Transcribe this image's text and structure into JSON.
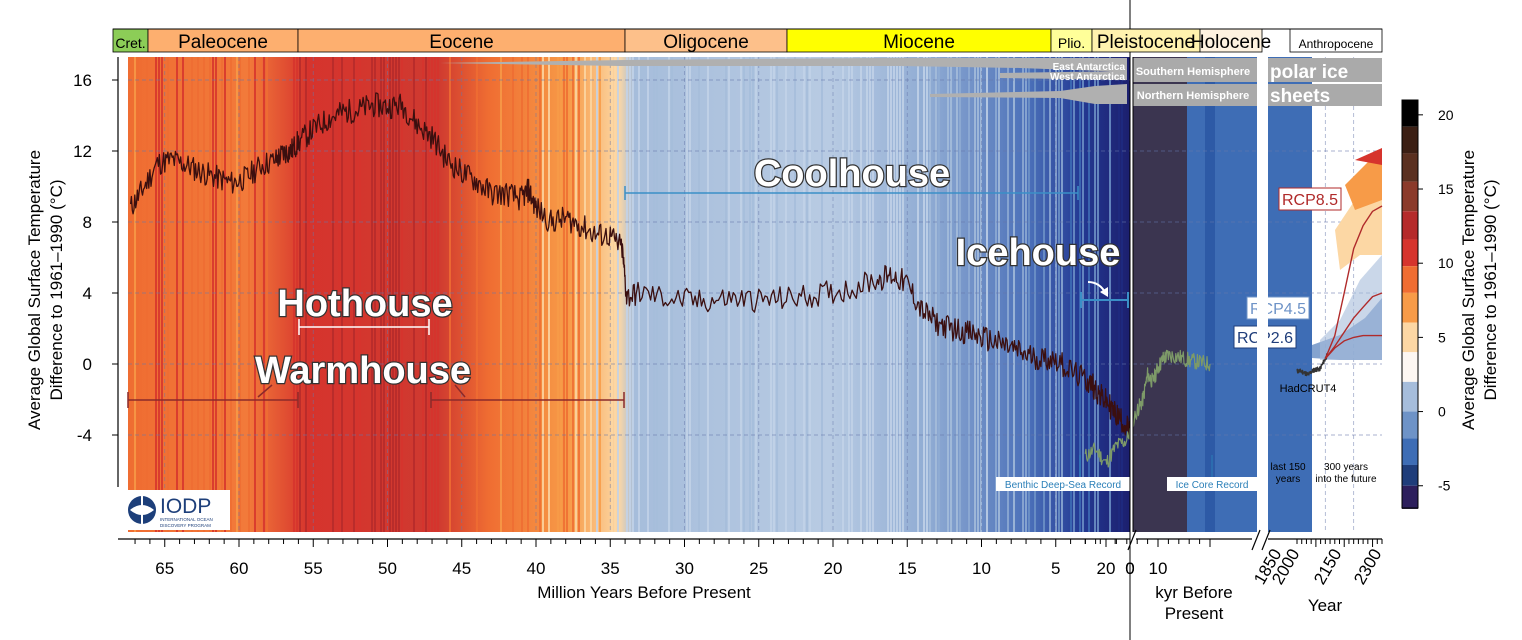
{
  "chart_data": {
    "type": "line",
    "title": "",
    "ylabel_left": [
      "Average Global Surface Temperature",
      "Difference to 1961–1990 (°C)"
    ],
    "ylabel_right": [
      "Average Global Surface Temperature",
      "Difference to 1961–1990 (°C)"
    ],
    "ylim": [
      -7,
      17
    ],
    "yticks": [
      16,
      12,
      8,
      4,
      0,
      -4
    ],
    "panels": [
      {
        "name": "myr",
        "xlabel": "Million Years Before Present",
        "xlim": [
          67.5,
          0
        ],
        "xticks": [
          65,
          60,
          55,
          50,
          45,
          40,
          35,
          30,
          25,
          20,
          15,
          10,
          5,
          0
        ]
      },
      {
        "name": "kyr",
        "xlabel": [
          "kyr Before",
          "Present"
        ],
        "xlim": [
          25,
          0
        ],
        "xticks": [
          20,
          10
        ]
      },
      {
        "name": "year",
        "xlabel": "Year",
        "xticks": [
          "1850",
          "2000",
          "2150",
          "2300"
        ]
      }
    ],
    "epochs": [
      {
        "label": "Cret.",
        "start": 67.5,
        "end": 66,
        "color": "#8ccd57"
      },
      {
        "label": "Paleocene",
        "start": 66,
        "end": 56,
        "color": "#fdaf6f"
      },
      {
        "label": "Eocene",
        "start": 56,
        "end": 33.9,
        "color": "#fdaf6f"
      },
      {
        "label": "Oligocene",
        "start": 33.9,
        "end": 23,
        "color": "#fdc08a"
      },
      {
        "label": "Miocene",
        "start": 23,
        "end": 5.3,
        "color": "#ffff00"
      },
      {
        "label": "Plio.",
        "start": 5.3,
        "end": 2.6,
        "color": "#ffff99"
      },
      {
        "label": "Pleistocene",
        "panel": "kyr-start",
        "color": "#fff2ae"
      },
      {
        "label": "Holocene",
        "panel": "kyr-end",
        "color": "#fef2e0"
      },
      {
        "label": "Anthropocene",
        "panel": "year",
        "color": "#ffffff"
      }
    ],
    "regimes": [
      {
        "label": "Hothouse",
        "from": 56,
        "to": 47
      },
      {
        "label": "Warmhouse",
        "ranges": [
          [
            67,
            56
          ],
          [
            47,
            34
          ]
        ]
      },
      {
        "label": "Coolhouse",
        "from": 34,
        "to": 3.3
      },
      {
        "label": "Icehouse",
        "from": 3.3,
        "to": 0
      }
    ],
    "series": [
      {
        "name": "Benthic Deep-Sea Record",
        "color": "#3b0f0f",
        "x": [
          67.3,
          66.5,
          65.5,
          64.5,
          63.5,
          62.5,
          61.5,
          60.5,
          59.5,
          58.5,
          57.5,
          57,
          56.5,
          56,
          55,
          54,
          53,
          52,
          51,
          50,
          49,
          48,
          47,
          46,
          45,
          44,
          43,
          42,
          41,
          40.5,
          40,
          39,
          38,
          37,
          36,
          35,
          34.2,
          33.9,
          33,
          31,
          29,
          27,
          25,
          23,
          21,
          19,
          17,
          16,
          15,
          14,
          13,
          12,
          11,
          10,
          9,
          8,
          7,
          6,
          5,
          4,
          3,
          2.5,
          2,
          1.5,
          1,
          0.5,
          0
        ],
        "y": [
          8.8,
          9.8,
          11.3,
          11.5,
          11.2,
          10.8,
          10.5,
          10.2,
          10.5,
          11.2,
          11.5,
          11.9,
          12,
          12.5,
          13.2,
          13.8,
          14.2,
          14.3,
          14.6,
          14.5,
          14.6,
          13.5,
          12.8,
          11.5,
          10.8,
          10.3,
          9.6,
          9.6,
          9.3,
          9.8,
          8.8,
          8.0,
          8.2,
          7.8,
          7.3,
          7.2,
          6.5,
          3.8,
          4.0,
          3.7,
          3.5,
          3.7,
          3.6,
          3.7,
          3.9,
          4.2,
          4.8,
          5.0,
          4.5,
          3.0,
          2.3,
          2.0,
          1.8,
          1.5,
          1.2,
          0.9,
          0.5,
          0.3,
          0.3,
          -0.4,
          -0.9,
          -1.2,
          -1.8,
          -2.2,
          -2.8,
          -3.2,
          -3.8
        ]
      },
      {
        "name": "Ice Core Record",
        "color": "#7d9a68",
        "x": [
          24,
          22,
          20,
          18,
          16,
          14,
          13,
          12,
          11,
          10,
          9,
          8,
          6,
          4,
          2,
          0
        ],
        "y": [
          -5.2,
          -4.8,
          -5.6,
          -4.6,
          -4.3,
          -2.6,
          -2.1,
          -0.6,
          -1.0,
          -0.2,
          0.3,
          0.5,
          0.4,
          0.2,
          0.1,
          0.0
        ]
      },
      {
        "name": "HadCRUT4",
        "color": "#333333",
        "x": [
          1850,
          1870,
          1890,
          1910,
          1930,
          1950,
          1970,
          1990,
          2010
        ],
        "y": [
          -0.4,
          -0.4,
          -0.5,
          -0.6,
          -0.4,
          -0.3,
          -0.3,
          0.1,
          0.5
        ]
      },
      {
        "name": "RCP8.5",
        "color": "#b02a2a",
        "x": [
          2000,
          2050,
          2100,
          2150,
          2200,
          2250,
          2300
        ],
        "y": [
          0.3,
          1.6,
          4.0,
          6.5,
          7.8,
          8.6,
          8.9
        ]
      },
      {
        "name": "RCP4.5",
        "color": "#b02a2a",
        "x": [
          2000,
          2050,
          2100,
          2150,
          2200,
          2250,
          2300
        ],
        "y": [
          0.3,
          1.0,
          1.8,
          2.6,
          3.2,
          3.8,
          4.0
        ]
      },
      {
        "name": "RCP2.6",
        "color": "#b02a2a",
        "x": [
          2000,
          2050,
          2100,
          2150,
          2200,
          2250,
          2300
        ],
        "y": [
          0.3,
          0.9,
          1.3,
          1.5,
          1.6,
          1.6,
          1.6
        ]
      }
    ],
    "colorbar": {
      "ticks": [
        20,
        15,
        10,
        5,
        0,
        -5
      ],
      "colors": [
        "#000000",
        "#3b1f14",
        "#5a3020",
        "#8b3a2a",
        "#b52a2a",
        "#d6342d",
        "#ef6d32",
        "#f79b48",
        "#fcd7a4",
        "#fdf7f2",
        "#a6bddb",
        "#6e93c7",
        "#3e6db5",
        "#1f3d7a",
        "#2d1f5c",
        "#3b3550"
      ]
    },
    "ice_sheets": {
      "labels": [
        "East Antarctica",
        "West Antarctica",
        "Southern Hemisphere",
        "Northern Hemisphere",
        "polar ice",
        "sheets"
      ]
    },
    "annotations": [
      "Benthic Deep-Sea Record",
      "Ice Core Record",
      "HadCRUT4",
      "last 150 years",
      "300 years into the future",
      "RCP8.5",
      "RCP4.5",
      "RCP2.6",
      "Coolhouse",
      "Icehouse",
      "Hothouse",
      "Warmhouse"
    ]
  },
  "logo": {
    "text": "IODP",
    "subtitle": [
      "INTERNATIONAL OCEAN",
      "DISCOVERY PROGRAM"
    ]
  }
}
